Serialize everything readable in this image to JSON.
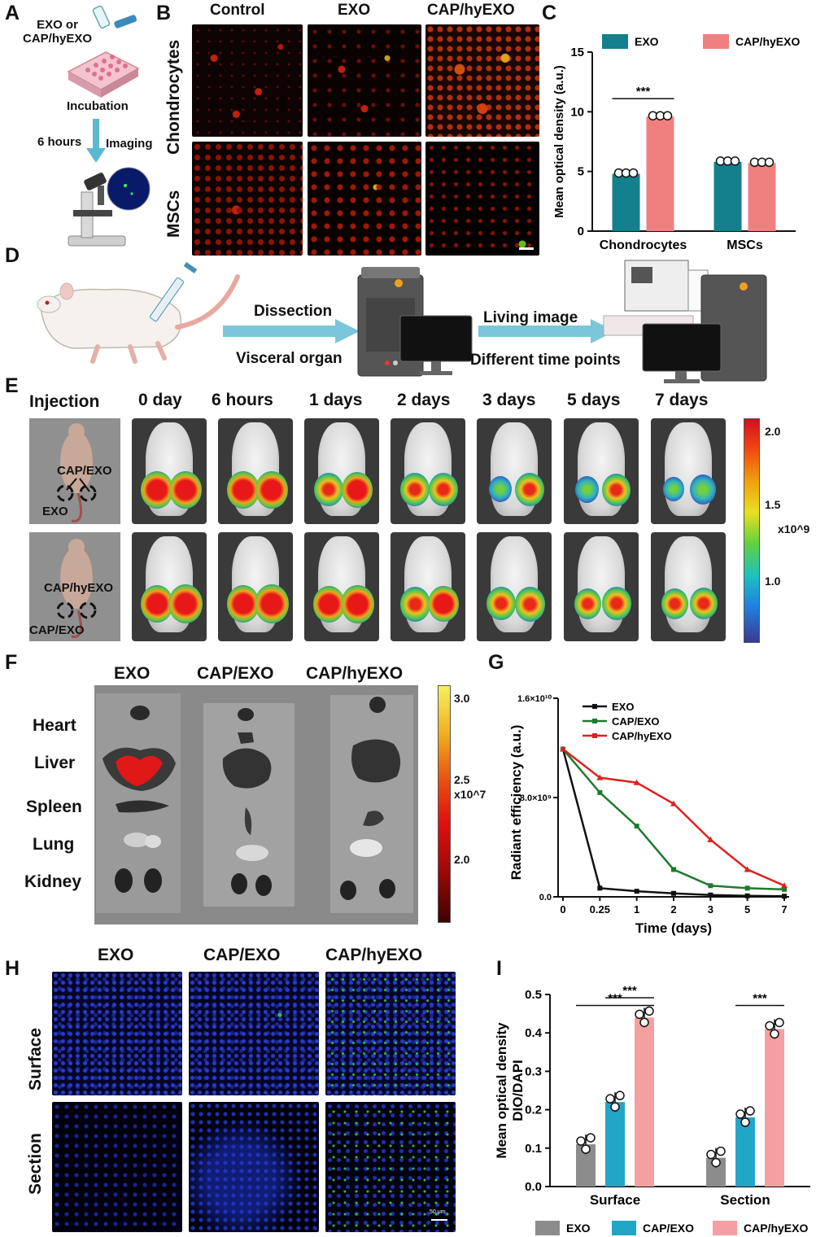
{
  "panels": {
    "A": "A",
    "B": "B",
    "C": "C",
    "D": "D",
    "E": "E",
    "F": "F",
    "G": "G",
    "H": "H",
    "I": "I"
  },
  "panelA": {
    "top_label": "EXO or\nCAP/hyEXO",
    "incubation": "Incubation",
    "time": "6 hours",
    "imaging": "Imaging"
  },
  "panelB": {
    "cols": [
      "Control",
      "EXO",
      "CAP/hyEXO"
    ],
    "rows": [
      "Chondrocytes",
      "MSCs"
    ]
  },
  "panelC": {
    "chart_data": {
      "type": "bar",
      "ylabel": "Mean optical density (a.u.)",
      "categories": [
        "Chondrocytes",
        "MSCs"
      ],
      "series": [
        {
          "name": "EXO",
          "values": [
            4.8,
            5.8
          ],
          "color": "#14808e"
        },
        {
          "name": "CAP/hyEXO",
          "values": [
            9.6,
            5.7
          ],
          "color": "#f08080"
        }
      ],
      "ylim": [
        0,
        15
      ],
      "yticks": [
        "0",
        "5",
        "10",
        "15"
      ],
      "significance": "***"
    }
  },
  "panelD": {
    "dissection": "Dissection",
    "visceral": "Visceral organ",
    "living": "Living image",
    "timepoints": "Different time points"
  },
  "panelE": {
    "cols": [
      "Injection",
      "0 day",
      "6 hours",
      "1 days",
      "2 days",
      "3 days",
      "5 days",
      "7 days"
    ],
    "row1_labels": [
      "CAP/EXO",
      "EXO"
    ],
    "row2_labels": [
      "CAP/hyEXO",
      "CAP/EXO"
    ],
    "scale_ticks": [
      "2.0",
      "1.5",
      "1.0"
    ],
    "scale_unit": "x10^9"
  },
  "panelF": {
    "cols": [
      "EXO",
      "CAP/EXO",
      "CAP/hyEXO"
    ],
    "organs": [
      "Heart",
      "Liver",
      "Spleen",
      "Lung",
      "Kidney"
    ],
    "scale_ticks": [
      "3.0",
      "2.5",
      "2.0"
    ],
    "scale_unit": "x10^7"
  },
  "panelG": {
    "chart_data": {
      "type": "line",
      "ylabel": "Radiant efficiency (a.u.)",
      "xlabel": "Time (days)",
      "x": [
        "0",
        "0.25",
        "1",
        "2",
        "3",
        "5",
        "7"
      ],
      "yticks": [
        "0.0",
        "8.0×10⁹",
        "1.6×10¹⁰"
      ],
      "ylim": [
        0,
        16000000000
      ],
      "series": [
        {
          "name": "EXO",
          "color": "#111111",
          "values": [
            11900000000,
            700000000,
            450000000,
            280000000,
            150000000,
            80000000,
            50000000
          ]
        },
        {
          "name": "CAP/EXO",
          "color": "#1e7a2e",
          "values": [
            11900000000,
            8400000000,
            5700000000,
            2200000000,
            900000000,
            700000000,
            600000000
          ]
        },
        {
          "name": "CAP/hyEXO",
          "color": "#e02020",
          "values": [
            11900000000,
            9600000000,
            9200000000,
            7500000000,
            4600000000,
            2200000000,
            900000000
          ]
        }
      ]
    }
  },
  "panelH": {
    "cols": [
      "EXO",
      "CAP/EXO",
      "CAP/hyEXO"
    ],
    "rows": [
      "Surface",
      "Section"
    ],
    "scalebar": "50 μm"
  },
  "panelI": {
    "chart_data": {
      "type": "bar",
      "ylabel": "Mean optical density\nDIO/DAPI",
      "categories": [
        "Surface",
        "Section"
      ],
      "series": [
        {
          "name": "EXO",
          "values": [
            0.11,
            0.075
          ],
          "color": "#8c8c8c"
        },
        {
          "name": "CAP/EXO",
          "values": [
            0.22,
            0.18
          ],
          "color": "#22a6c8"
        },
        {
          "name": "CAP/hyEXO",
          "values": [
            0.44,
            0.41
          ],
          "color": "#f4a0a0"
        }
      ],
      "ylim": [
        0,
        0.5
      ],
      "yticks": [
        "0.0",
        "0.1",
        "0.2",
        "0.3",
        "0.4",
        "0.5"
      ],
      "significance": "***"
    }
  }
}
